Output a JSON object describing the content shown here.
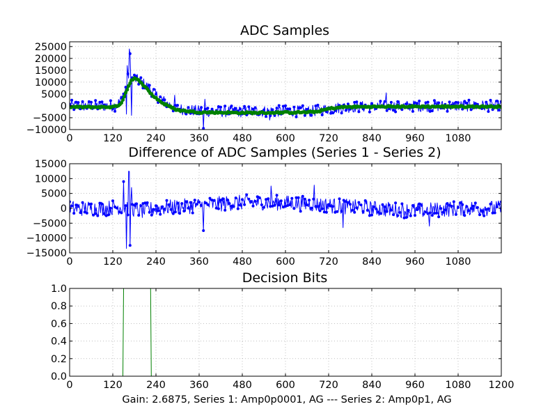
{
  "figure_footer": "Gain: 2.6875, Series 1: Amp0p0001, AG --- Series 2: Amp0p1, AG",
  "colors": {
    "series1": "#0000ff",
    "series2": "#008000",
    "grid": "#999999"
  },
  "chart_data": [
    {
      "type": "line",
      "title": "ADC Samples",
      "xlim": [
        0,
        1200
      ],
      "ylim": [
        -10000,
        27000
      ],
      "xticks": [
        0,
        120,
        240,
        360,
        480,
        600,
        720,
        840,
        960,
        1080
      ],
      "yticks": [
        -10000,
        -5000,
        0,
        5000,
        10000,
        15000,
        20000,
        25000
      ],
      "grid": true,
      "series": [
        {
          "color": "#0000ff",
          "marker": "dot",
          "noise_amplitude": 2400,
          "envelope_x": [
            0,
            100,
            130,
            145,
            155,
            160,
            165,
            170,
            180,
            200,
            220,
            240,
            270,
            300,
            360,
            420,
            480,
            540,
            600,
            660,
            690,
            720,
            760,
            800,
            900,
            1000,
            1100,
            1200
          ],
          "envelope_y": [
            0,
            0,
            100,
            3000,
            6500,
            9500,
            14000,
            11000,
            11500,
            10000,
            7500,
            4500,
            1000,
            -1200,
            -2200,
            -2400,
            -2400,
            -2300,
            -2200,
            -2300,
            -2000,
            -1200,
            -600,
            -400,
            -150,
            -50,
            0,
            0
          ],
          "spikes": [
            {
              "x": 165,
              "y": 24000
            },
            {
              "x": 168,
              "y": 22000
            },
            {
              "x": 160,
              "y": 17000
            },
            {
              "x": 158,
              "y": -3500
            },
            {
              "x": 172,
              "y": -4000
            },
            {
              "x": 372,
              "y": -9500
            },
            {
              "x": 375,
              "y": 2800
            },
            {
              "x": 292,
              "y": 4500
            },
            {
              "x": 880,
              "y": 5500
            },
            {
              "x": 555,
              "y": -6000
            }
          ]
        },
        {
          "color": "#008000",
          "marker": "dot-thick",
          "noise_amplitude": 350,
          "envelope_x": [
            0,
            110,
            130,
            145,
            160,
            170,
            180,
            195,
            210,
            230,
            260,
            300,
            360,
            420,
            480,
            540,
            600,
            660,
            690,
            720,
            760,
            800,
            900,
            1000,
            1100,
            1200
          ],
          "envelope_y": [
            -500,
            -500,
            -300,
            1500,
            7000,
            10500,
            11500,
            10500,
            8000,
            4500,
            1000,
            -1800,
            -2700,
            -2800,
            -2900,
            -2900,
            -2800,
            -2700,
            -2400,
            -1200,
            -500,
            -400,
            -300,
            -300,
            -300,
            -300
          ],
          "spikes": []
        }
      ]
    },
    {
      "type": "line",
      "title": "Difference of ADC Samples (Series 1 - Series 2)",
      "xlim": [
        0,
        1200
      ],
      "ylim": [
        -15000,
        15000
      ],
      "xticks": [
        0,
        120,
        240,
        360,
        480,
        600,
        720,
        840,
        960,
        1080
      ],
      "yticks": [
        -15000,
        -10000,
        -5000,
        0,
        5000,
        10000,
        15000
      ],
      "grid": true,
      "series": [
        {
          "color": "#0000ff",
          "marker": "dot",
          "noise_amplitude": 2600,
          "envelope_x": [
            0,
            100,
            140,
            170,
            200,
            240,
            300,
            360,
            420,
            480,
            540,
            600,
            660,
            720,
            780,
            840,
            900,
            960,
            1020,
            1080,
            1200
          ],
          "envelope_y": [
            0,
            0,
            500,
            0,
            -1000,
            0,
            500,
            1000,
            1500,
            2000,
            2000,
            1800,
            1500,
            1000,
            500,
            0,
            -500,
            -800,
            -500,
            0,
            0
          ],
          "spikes": [
            {
              "x": 163,
              "y": 12500
            },
            {
              "x": 166,
              "y": 12400
            },
            {
              "x": 150,
              "y": 9000
            },
            {
              "x": 158,
              "y": -13500
            },
            {
              "x": 168,
              "y": -12500
            },
            {
              "x": 172,
              "y": 7000
            },
            {
              "x": 372,
              "y": -7500
            },
            {
              "x": 560,
              "y": 7500
            },
            {
              "x": 680,
              "y": 7800
            },
            {
              "x": 760,
              "y": -6500
            },
            {
              "x": 1000,
              "y": -6000
            }
          ]
        }
      ]
    },
    {
      "type": "line",
      "title": "Decision Bits",
      "xlim": [
        0,
        1200
      ],
      "ylim": [
        0,
        1
      ],
      "xticks": [
        0,
        120,
        240,
        360,
        480,
        600,
        720,
        840,
        960,
        1080,
        1200
      ],
      "yticks": [
        0.0,
        0.2,
        0.4,
        0.6,
        0.8,
        1.0
      ],
      "ytick_decimals": 1,
      "grid": true,
      "series": [
        {
          "color": "#008000",
          "x": [
            0,
            148,
            150,
            225,
            227,
            1200
          ],
          "y": [
            0,
            0,
            1,
            1,
            0,
            0
          ]
        },
        {
          "color": "#0000ff",
          "x": [
            0,
            1200
          ],
          "y": [
            0,
            0
          ]
        }
      ]
    }
  ]
}
